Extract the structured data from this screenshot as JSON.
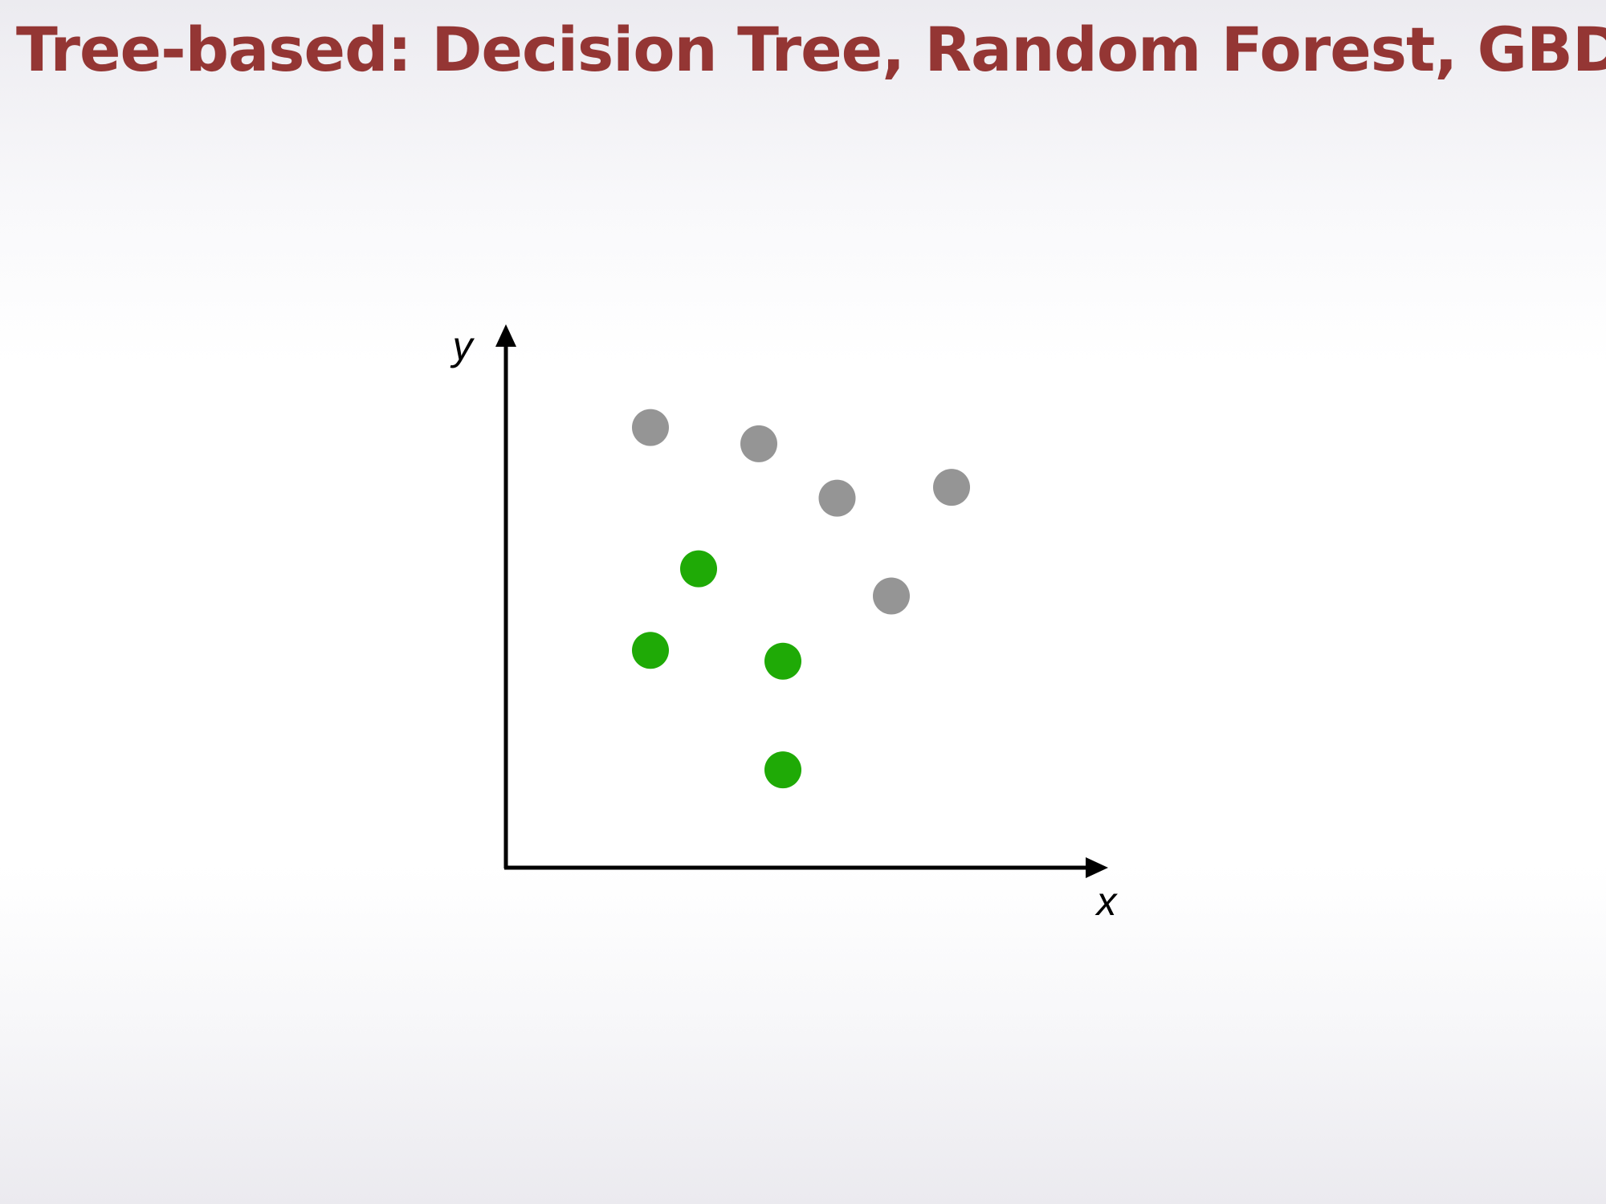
{
  "slide": {
    "title": "Tree-based: Decision Tree, Random Forest, GBDT"
  },
  "chart_data": {
    "type": "scatter",
    "title": "",
    "xlabel": "x",
    "ylabel": "y",
    "xlim": [
      0,
      10
    ],
    "ylim": [
      0,
      10
    ],
    "ticks": false,
    "grid": false,
    "legend": "none",
    "series": [
      {
        "color": "#959595",
        "points": [
          {
            "x": 2.4,
            "y": 8.1
          },
          {
            "x": 4.2,
            "y": 7.8
          },
          {
            "x": 5.5,
            "y": 6.8
          },
          {
            "x": 7.4,
            "y": 7.0
          },
          {
            "x": 6.4,
            "y": 5.0
          }
        ]
      },
      {
        "color": "#1faa06",
        "points": [
          {
            "x": 3.2,
            "y": 5.5
          },
          {
            "x": 2.4,
            "y": 4.0
          },
          {
            "x": 4.6,
            "y": 3.8
          },
          {
            "x": 4.6,
            "y": 1.8
          }
        ]
      }
    ]
  }
}
